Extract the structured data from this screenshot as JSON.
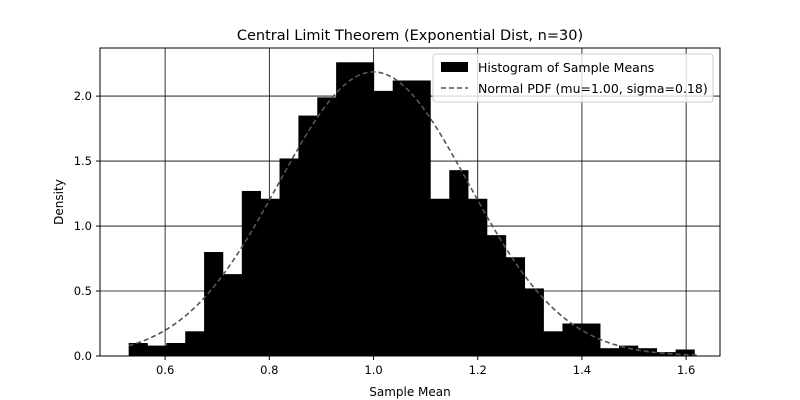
{
  "chart_data": {
    "type": "bar",
    "title": "Central Limit Theorem (Exponential Dist, n=30)",
    "xlabel": "Sample Mean",
    "ylabel": "Density",
    "xlim": [
      0.475,
      1.665
    ],
    "ylim": [
      0,
      2.37
    ],
    "grid": true,
    "legend_position": "top-right",
    "xticks": [
      0.6,
      0.8,
      1.0,
      1.2,
      1.4,
      1.6
    ],
    "xtick_labels": [
      "0.6",
      "0.8",
      "1.0",
      "1.2",
      "1.4",
      "1.6"
    ],
    "yticks": [
      0.0,
      0.5,
      1.0,
      1.5,
      2.0
    ],
    "ytick_labels": [
      "0.0",
      "0.5",
      "1.0",
      "1.5",
      "2.0"
    ],
    "bin_width": 0.0362,
    "bin_start": 0.53,
    "histogram": {
      "name": "Histogram of Sample Means",
      "color": "#000000",
      "values": [
        0.1,
        0.08,
        0.1,
        0.19,
        0.8,
        0.63,
        1.27,
        1.21,
        1.52,
        1.85,
        1.99,
        2.26,
        2.26,
        2.04,
        2.12,
        2.12,
        1.21,
        1.43,
        1.21,
        0.93,
        0.76,
        0.52,
        0.19,
        0.25,
        0.25,
        0.06,
        0.08,
        0.06,
        0.03,
        0.05
      ]
    },
    "normal_pdf": {
      "name": "Normal PDF (mu=1.00, sigma=0.18)",
      "mu": 1.0,
      "sigma": 0.1825,
      "x_range": [
        0.53,
        1.62
      ],
      "color": "#555555",
      "dash": "dashed"
    }
  }
}
